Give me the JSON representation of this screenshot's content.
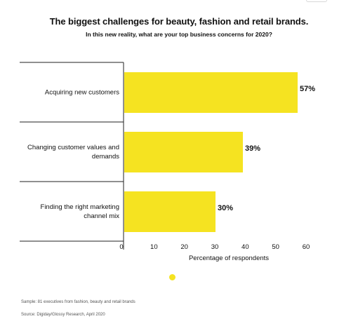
{
  "header": {
    "title": "The biggest challenges for beauty, fashion and retail brands.",
    "subtitle": "In this new reality, what are your top business concerns for 2020?"
  },
  "chart_data": {
    "type": "bar",
    "orientation": "horizontal",
    "categories": [
      [
        "Acquiring new customers"
      ],
      [
        "Changing customer values and",
        "demands"
      ],
      [
        "Finding the right marketing",
        "channel mix"
      ]
    ],
    "values": [
      57,
      39,
      30
    ],
    "value_labels": [
      "57%",
      "39%",
      "30%"
    ],
    "x_ticks": [
      0,
      10,
      20,
      30,
      40,
      50,
      60
    ],
    "xlim": [
      0,
      60
    ],
    "xlabel": "Percentage of respondents",
    "bar_color": "#f5e321",
    "grid": false,
    "legend": "none"
  },
  "indicator_color": "#f5e321",
  "footnotes": {
    "sample": "Sample: 81 executives from fashion, beauty and retail brands",
    "source": "Source: Digiday/Glossy Research, April 2020"
  }
}
